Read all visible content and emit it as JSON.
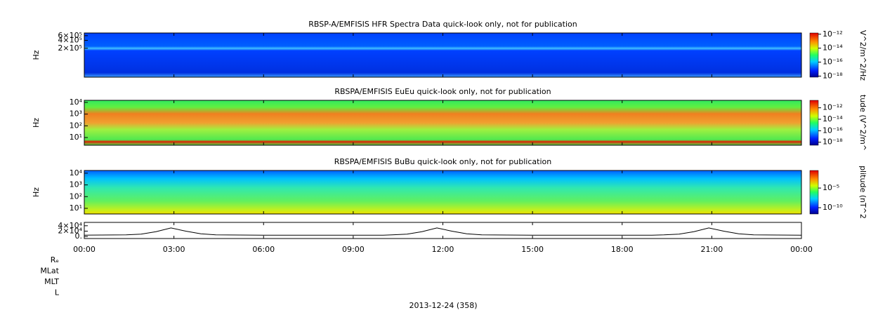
{
  "chart_data": [
    {
      "type": "spectrogram",
      "title": "RBSP-A/EMFISIS  HFR Spectra Data quick-look only, not for publication",
      "ylabel": "Hz",
      "log": true,
      "ylim": [
        16000,
        760000
      ],
      "yticks": [
        {
          "value": 600000,
          "label": "6×10⁵"
        },
        {
          "value": 400000,
          "label": "4×10⁵"
        },
        {
          "value": 200000,
          "label": "2×10⁵"
        }
      ],
      "colorbar": {
        "label": "V^2/m^2/Hz",
        "clim": [
          7e-19,
          1.5e-12
        ],
        "ticks": [
          {
            "value": 1e-12,
            "label": "10⁻¹²"
          },
          {
            "value": 1e-14,
            "label": "10⁻¹⁴"
          },
          {
            "value": 1e-16,
            "label": "10⁻¹⁶"
          },
          {
            "value": 1e-18,
            "label": "10⁻¹⁸"
          }
        ]
      }
    },
    {
      "type": "spectrogram",
      "title": "RBSPA/EMFISIS  EuEu quick-look only, not for publication",
      "ylabel": "Hz",
      "log": true,
      "ylim": [
        2.2,
        15000
      ],
      "yticks": [
        {
          "value": 10000,
          "label": "10⁴"
        },
        {
          "value": 1000,
          "label": "10³"
        },
        {
          "value": 100,
          "label": "10²"
        },
        {
          "value": 10,
          "label": "10¹"
        }
      ],
      "colorbar": {
        "label": "tude (V^2/m^",
        "clim": [
          3e-19,
          2e-11
        ],
        "ticks": [
          {
            "value": 1e-12,
            "label": "10⁻¹²"
          },
          {
            "value": 1e-14,
            "label": "10⁻¹⁴"
          },
          {
            "value": 1e-16,
            "label": "10⁻¹⁶"
          },
          {
            "value": 1e-18,
            "label": "10⁻¹⁸"
          }
        ]
      }
    },
    {
      "type": "spectrogram",
      "title": "RBSPA/EMFISIS  BuBu quick-look only, not for publication",
      "ylabel": "Hz",
      "log": true,
      "ylim": [
        3.3,
        17000
      ],
      "yticks": [
        {
          "value": 10000,
          "label": "10⁴"
        },
        {
          "value": 1000,
          "label": "10³"
        },
        {
          "value": 100,
          "label": "10²"
        },
        {
          "value": 10,
          "label": "10¹"
        }
      ],
      "colorbar": {
        "label": "plitude (nT^2",
        "clim": [
          2.5e-12,
          0.3
        ],
        "ticks": [
          {
            "value": 1e-05,
            "label": "10⁻⁵"
          },
          {
            "value": 1e-10,
            "label": "10⁻¹⁰"
          }
        ]
      }
    },
    {
      "type": "line",
      "color": "#000000",
      "xlim": [
        0,
        24
      ],
      "xticks": [
        {
          "value": 0,
          "label": "00:00"
        },
        {
          "value": 3,
          "label": "03:00"
        },
        {
          "value": 6,
          "label": "06:00"
        },
        {
          "value": 9,
          "label": "09:00"
        },
        {
          "value": 12,
          "label": "12:00"
        },
        {
          "value": 15,
          "label": "15:00"
        },
        {
          "value": 18,
          "label": "18:00"
        },
        {
          "value": 21,
          "label": "21:00"
        },
        {
          "value": 24,
          "label": "00:00"
        }
      ],
      "ylim": [
        -7500,
        52500
      ],
      "yticks": [
        {
          "value": 40000,
          "label": "4×10⁴"
        },
        {
          "value": 20000,
          "label": "2×10⁴"
        },
        {
          "value": 0,
          "label": "0."
        }
      ],
      "x": [
        0,
        1.4,
        1.9,
        2.4,
        2.9,
        3.4,
        3.9,
        4.4,
        6,
        8,
        10,
        10.3,
        10.8,
        11.3,
        11.8,
        12.3,
        12.8,
        13.3,
        15,
        17,
        19,
        19.4,
        19.9,
        20.4,
        20.9,
        21.4,
        21.9,
        22.4,
        24
      ],
      "values": [
        5000,
        6000,
        9000,
        18000,
        32000,
        20000,
        10000,
        6000,
        5000,
        5000,
        5000,
        6000,
        9000,
        18000,
        32000,
        20000,
        10000,
        6000,
        5000,
        5000,
        5000,
        6000,
        9000,
        18000,
        32000,
        20000,
        10000,
        6000,
        5000
      ],
      "row_labels": [
        "Rₑ",
        "MLat",
        "MLT",
        "L"
      ],
      "xlabel": "2013-12-24 (358)"
    }
  ]
}
